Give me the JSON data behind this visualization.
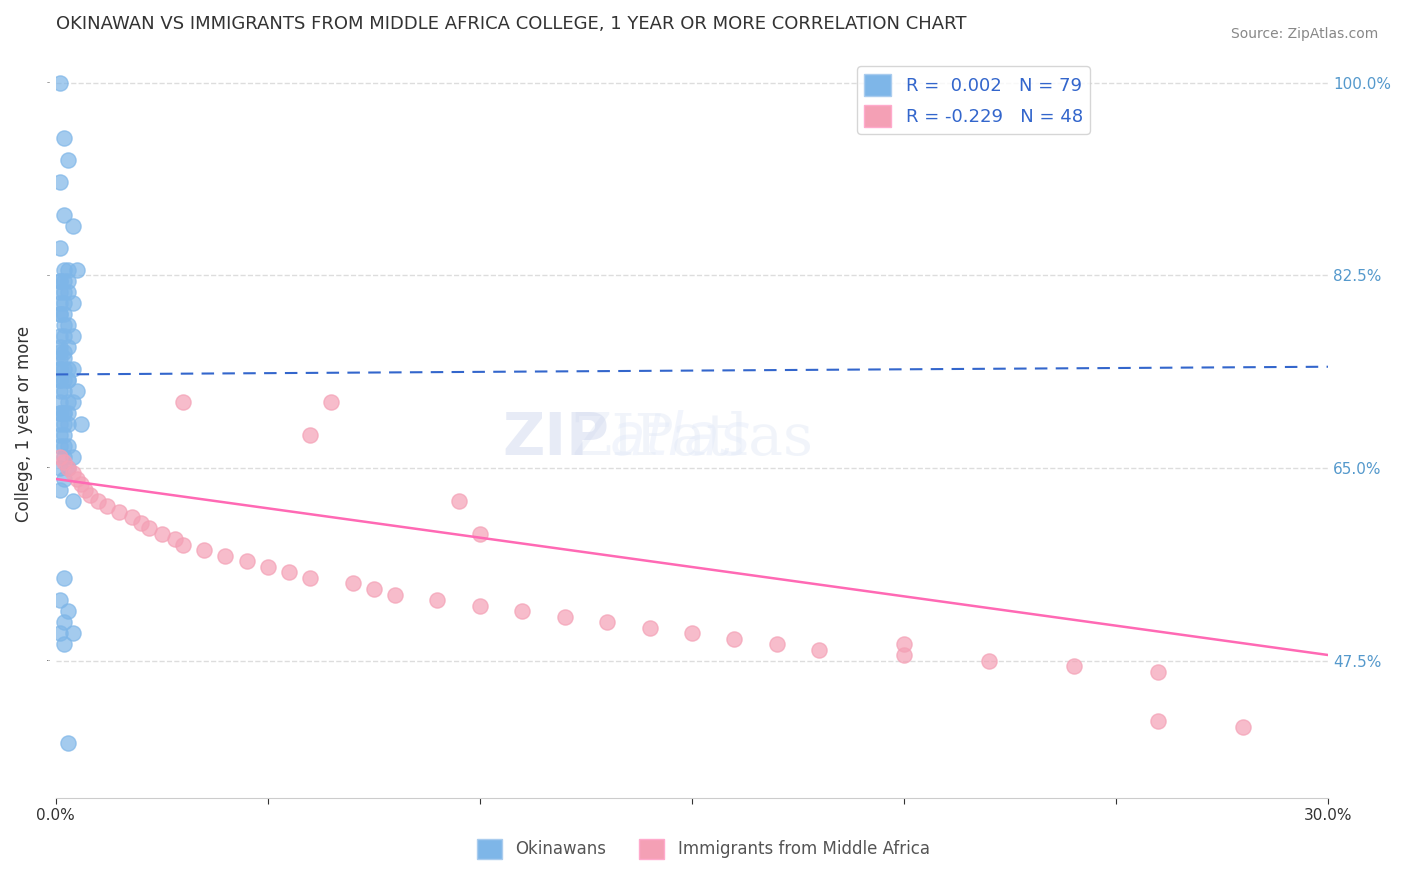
{
  "title": "OKINAWAN VS IMMIGRANTS FROM MIDDLE AFRICA COLLEGE, 1 YEAR OR MORE CORRELATION CHART",
  "source": "Source: ZipAtlas.com",
  "xlabel": "",
  "ylabel": "College, 1 year or more",
  "xmin": 0.0,
  "xmax": 0.3,
  "ymin": 0.35,
  "ymax": 1.03,
  "yticks": [
    0.475,
    0.65,
    0.825,
    1.0
  ],
  "ytick_labels": [
    "47.5%",
    "65.0%",
    "82.5%",
    "100.0%"
  ],
  "xticks": [
    0.0,
    0.05,
    0.1,
    0.15,
    0.2,
    0.25,
    0.3
  ],
  "xtick_labels": [
    "0.0%",
    "",
    "",
    "",
    "",
    "",
    "30.0%"
  ],
  "legend_r1": "R =  0.002",
  "legend_n1": "N = 79",
  "legend_r2": "R = -0.229",
  "legend_n2": "N = 48",
  "blue_color": "#7EB6E8",
  "pink_color": "#F4A0B5",
  "blue_line_color": "#3366CC",
  "pink_line_color": "#FF69B4",
  "legend_text_color": "#3366CC",
  "blue_scatter_x": [
    0.001,
    0.002,
    0.003,
    0.001,
    0.002,
    0.004,
    0.001,
    0.003,
    0.002,
    0.005,
    0.001,
    0.002,
    0.001,
    0.003,
    0.001,
    0.002,
    0.003,
    0.002,
    0.001,
    0.004,
    0.001,
    0.002,
    0.001,
    0.003,
    0.002,
    0.001,
    0.004,
    0.002,
    0.001,
    0.003,
    0.001,
    0.002,
    0.001,
    0.002,
    0.001,
    0.003,
    0.002,
    0.001,
    0.004,
    0.003,
    0.001,
    0.002,
    0.001,
    0.003,
    0.005,
    0.002,
    0.001,
    0.003,
    0.001,
    0.004,
    0.002,
    0.001,
    0.003,
    0.002,
    0.001,
    0.006,
    0.002,
    0.001,
    0.003,
    0.002,
    0.001,
    0.002,
    0.001,
    0.003,
    0.004,
    0.002,
    0.001,
    0.003,
    0.002,
    0.001,
    0.004,
    0.002,
    0.001,
    0.003,
    0.002,
    0.001,
    0.004,
    0.002,
    0.003
  ],
  "blue_scatter_y": [
    1.0,
    0.95,
    0.93,
    0.91,
    0.88,
    0.87,
    0.85,
    0.83,
    0.83,
    0.83,
    0.82,
    0.82,
    0.82,
    0.82,
    0.81,
    0.81,
    0.81,
    0.8,
    0.8,
    0.8,
    0.79,
    0.79,
    0.79,
    0.78,
    0.78,
    0.77,
    0.77,
    0.77,
    0.76,
    0.76,
    0.755,
    0.755,
    0.75,
    0.75,
    0.74,
    0.74,
    0.74,
    0.74,
    0.74,
    0.73,
    0.73,
    0.73,
    0.73,
    0.73,
    0.72,
    0.72,
    0.72,
    0.71,
    0.71,
    0.71,
    0.7,
    0.7,
    0.7,
    0.7,
    0.7,
    0.69,
    0.69,
    0.69,
    0.69,
    0.68,
    0.68,
    0.67,
    0.67,
    0.67,
    0.66,
    0.66,
    0.65,
    0.65,
    0.64,
    0.63,
    0.62,
    0.55,
    0.53,
    0.52,
    0.51,
    0.5,
    0.5,
    0.49,
    0.4
  ],
  "pink_scatter_x": [
    0.001,
    0.002,
    0.003,
    0.004,
    0.005,
    0.006,
    0.007,
    0.008,
    0.01,
    0.012,
    0.015,
    0.018,
    0.02,
    0.022,
    0.025,
    0.028,
    0.03,
    0.035,
    0.04,
    0.045,
    0.05,
    0.055,
    0.06,
    0.065,
    0.07,
    0.075,
    0.08,
    0.09,
    0.095,
    0.1,
    0.11,
    0.12,
    0.13,
    0.14,
    0.15,
    0.16,
    0.17,
    0.18,
    0.2,
    0.22,
    0.24,
    0.26,
    0.03,
    0.06,
    0.1,
    0.2,
    0.26,
    0.28
  ],
  "pink_scatter_y": [
    0.66,
    0.655,
    0.65,
    0.645,
    0.64,
    0.635,
    0.63,
    0.625,
    0.62,
    0.615,
    0.61,
    0.605,
    0.6,
    0.595,
    0.59,
    0.585,
    0.58,
    0.575,
    0.57,
    0.565,
    0.56,
    0.555,
    0.55,
    0.71,
    0.545,
    0.54,
    0.535,
    0.53,
    0.62,
    0.525,
    0.52,
    0.515,
    0.51,
    0.505,
    0.5,
    0.495,
    0.49,
    0.485,
    0.48,
    0.475,
    0.47,
    0.465,
    0.71,
    0.68,
    0.59,
    0.49,
    0.42,
    0.415
  ],
  "blue_trend_x": [
    0.0,
    0.3
  ],
  "blue_trend_y": [
    0.735,
    0.742
  ],
  "pink_trend_x": [
    0.0,
    0.3
  ],
  "pink_trend_y": [
    0.64,
    0.48
  ],
  "background_color": "#FFFFFF",
  "grid_color": "#DDDDDD"
}
